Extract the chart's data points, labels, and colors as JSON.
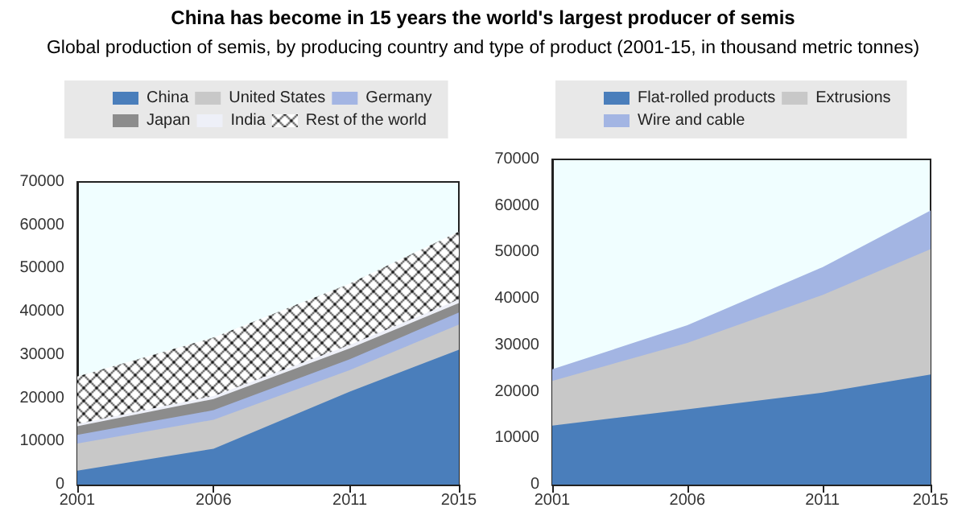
{
  "chart_data": [
    {
      "type": "area",
      "title": "China has become in 15 years the world's largest producer of semis",
      "subtitle": "Global production of semis, by producing country and type of product (2001-15, in thousand metric tonnes)",
      "stacked": true,
      "x": [
        2001,
        2006,
        2011,
        2015
      ],
      "xlim": [
        2001,
        2015
      ],
      "xticks": [
        2001,
        2006,
        2011,
        2015
      ],
      "ylim": [
        0,
        70000
      ],
      "yticks": [
        0,
        10000,
        20000,
        30000,
        40000,
        50000,
        60000,
        70000
      ],
      "grid": false,
      "legend": "top",
      "series": [
        {
          "name": "China",
          "color": "#4a7ebb",
          "values": [
            3200,
            8300,
            21500,
            31200
          ]
        },
        {
          "name": "United States",
          "color": "#c8c8c8",
          "values": [
            6300,
            6700,
            5000,
            5800
          ]
        },
        {
          "name": "Germany",
          "color": "#a3b5e3",
          "values": [
            2000,
            2200,
            2500,
            2800
          ]
        },
        {
          "name": "Japan",
          "color": "#8c8c8c",
          "values": [
            2000,
            2600,
            2500,
            2200
          ]
        },
        {
          "name": "India",
          "color": "#eef0f8",
          "values": [
            500,
            700,
            800,
            800
          ]
        },
        {
          "name": "Rest of the world",
          "color": "#000000",
          "values": [
            11000,
            13500,
            14200,
            15700
          ]
        }
      ]
    },
    {
      "type": "area",
      "stacked": true,
      "x": [
        2001,
        2006,
        2011,
        2015
      ],
      "xlim": [
        2001,
        2015
      ],
      "xticks": [
        2001,
        2006,
        2011,
        2015
      ],
      "ylim": [
        0,
        70000
      ],
      "yticks": [
        0,
        10000,
        20000,
        30000,
        40000,
        50000,
        60000,
        70000
      ],
      "grid": false,
      "legend": "top",
      "series": [
        {
          "name": "Flat-rolled products",
          "color": "#4a7ebb",
          "values": [
            12700,
            16200,
            19800,
            23700
          ]
        },
        {
          "name": "Extrusions",
          "color": "#c8c8c8",
          "values": [
            9600,
            14300,
            21000,
            27000
          ]
        },
        {
          "name": "Wire and cable",
          "color": "#a3b5e3",
          "values": [
            2500,
            3800,
            6000,
            8300
          ]
        }
      ]
    }
  ]
}
